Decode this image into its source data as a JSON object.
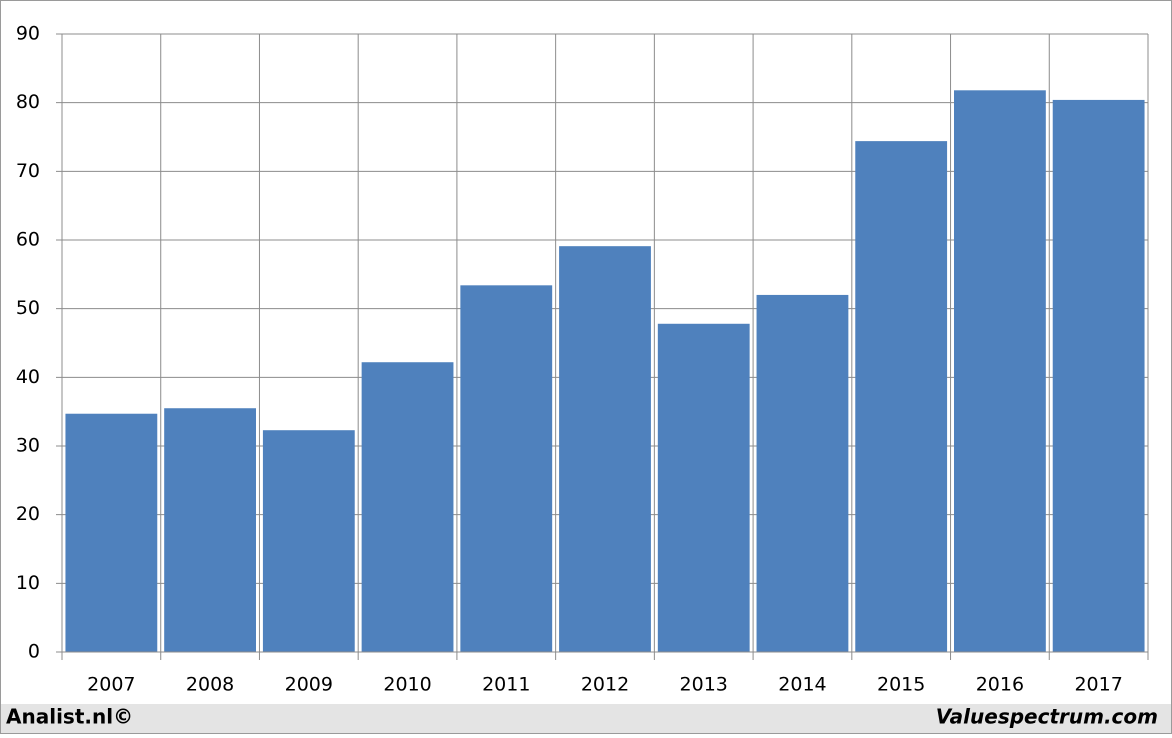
{
  "chart_data": {
    "type": "bar",
    "categories": [
      "2007",
      "2008",
      "2009",
      "2010",
      "2011",
      "2012",
      "2013",
      "2014",
      "2015",
      "2016",
      "2017"
    ],
    "values": [
      34.7,
      35.5,
      32.3,
      42.2,
      53.4,
      59.1,
      47.8,
      52.0,
      74.4,
      81.8,
      80.4
    ],
    "color": "#4f81bd",
    "ylim": [
      0,
      90
    ],
    "yticks": [
      0,
      10,
      20,
      30,
      40,
      50,
      60,
      70,
      80,
      90
    ],
    "grid": true,
    "footer_left": "Analist.nl©",
    "footer_right": "Valuespectrum.com"
  }
}
